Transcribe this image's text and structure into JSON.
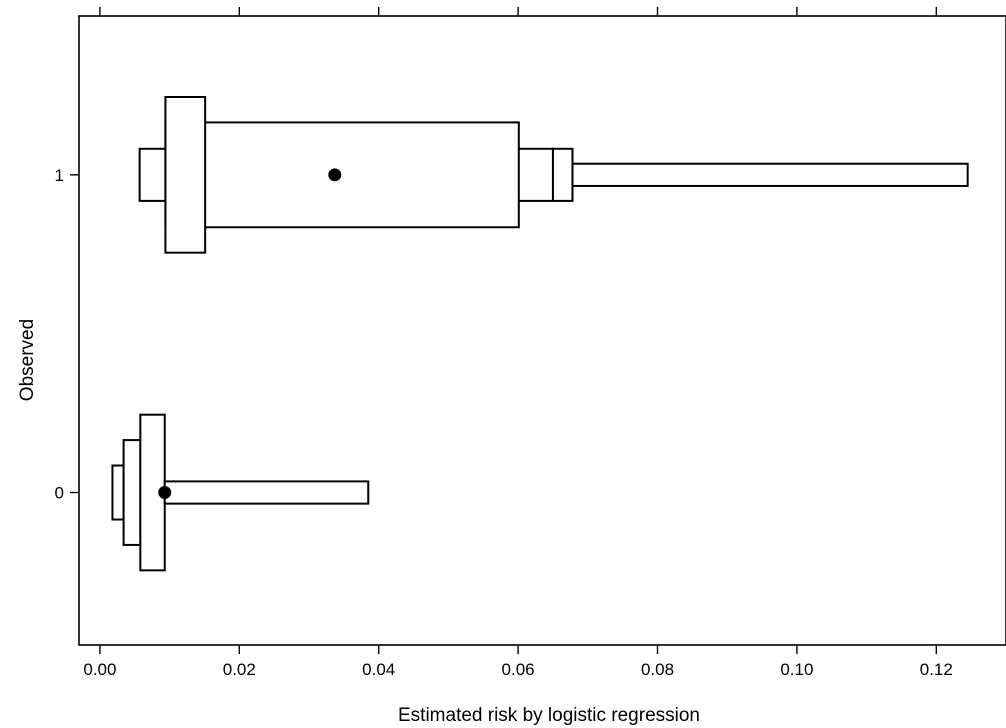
{
  "chart_data": {
    "type": "letter-value-plot",
    "title": "",
    "xlabel": "Estimated risk by logistic regression",
    "ylabel": "Observed",
    "xlim": [
      -0.003,
      0.13
    ],
    "ylim": [
      -0.48,
      1.5
    ],
    "x_ticks": [
      0.0,
      0.02,
      0.04,
      0.06,
      0.08,
      0.1,
      0.12
    ],
    "x_tick_labels": [
      "0.00",
      "0.02",
      "0.04",
      "0.06",
      "0.08",
      "0.10",
      "0.12"
    ],
    "y_ticks": [
      0,
      1
    ],
    "y_tick_labels": [
      "0",
      "1"
    ],
    "top_ticks": true,
    "grid": false,
    "series": [
      {
        "category": 1,
        "boxes": [
          {
            "low": 0.0057,
            "high": 0.065,
            "half_height": 0.082
          },
          {
            "low": 0.0094,
            "high": 0.0601,
            "half_height": 0.165
          },
          {
            "low": 0.0094,
            "high": 0.0151,
            "half_height": 0.245
          },
          {
            "low": 0.065,
            "high": 0.0678,
            "half_height": 0.082
          },
          {
            "low": 0.0678,
            "high": 0.1245,
            "half_height": 0.035
          }
        ],
        "center": 0.0337
      },
      {
        "category": 0,
        "boxes": [
          {
            "low": 0.0018,
            "high": 0.0034,
            "half_height": 0.085
          },
          {
            "low": 0.0034,
            "high": 0.0058,
            "half_height": 0.165
          },
          {
            "low": 0.0058,
            "high": 0.0093,
            "half_height": 0.245
          },
          {
            "low": 0.0093,
            "high": 0.0385,
            "half_height": 0.035
          }
        ],
        "center": 0.0093
      }
    ]
  }
}
